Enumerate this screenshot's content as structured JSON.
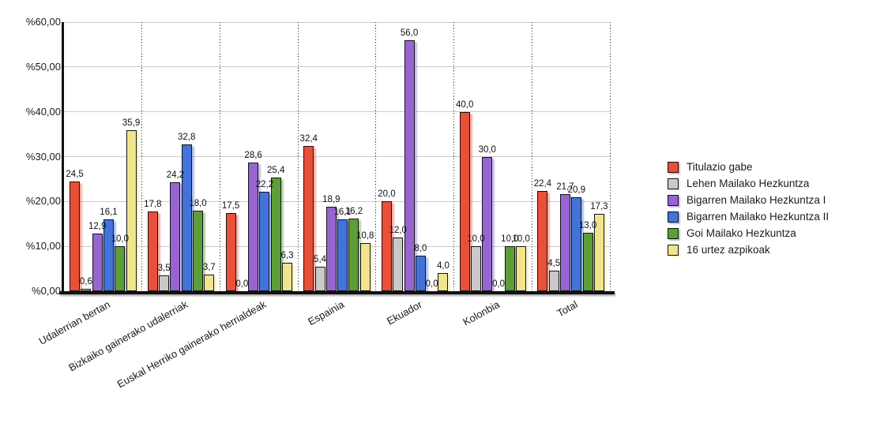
{
  "chart_data": {
    "type": "bar",
    "title": "",
    "xlabel": "",
    "ylabel": "",
    "ylim": [
      0,
      60
    ],
    "grid": true,
    "legend_position": "right",
    "decimal_separator": ",",
    "categories": [
      "Udalerrian bertan",
      "Bizkaiko gainerako udalerriak",
      "Euskal Herriko gainerako herrialdeak",
      "Espainia",
      "Ekuador",
      "Kolonbia",
      "Total"
    ],
    "y_ticks": [
      {
        "label": "%0,00",
        "value": 0
      },
      {
        "label": "%10,00",
        "value": 10
      },
      {
        "label": "%20,00",
        "value": 20
      },
      {
        "label": "%30,00",
        "value": 30
      },
      {
        "label": "%40,00",
        "value": 40
      },
      {
        "label": "%50,00",
        "value": 50
      },
      {
        "label": "%60,00",
        "value": 60
      }
    ],
    "series": [
      {
        "name": "Titulazio gabe",
        "color": "#E8503A",
        "values": [
          24.5,
          17.8,
          17.5,
          32.4,
          20.0,
          40.0,
          22.4
        ],
        "labels": [
          "24,5",
          "17,8",
          "17,5",
          "32,4",
          "20,0",
          "40,0",
          "22,4"
        ]
      },
      {
        "name": "Lehen Mailako Hezkuntza",
        "color": "#C9C9C9",
        "values": [
          0.6,
          3.5,
          0.0,
          5.4,
          12.0,
          10.0,
          4.5
        ],
        "labels": [
          "0,6",
          "3,5",
          "0,0",
          "5,4",
          "12,0",
          "10,0",
          "4,5"
        ]
      },
      {
        "name": "Bigarren Mailako Hezkuntza I",
        "color": "#9765D2",
        "values": [
          12.9,
          24.2,
          28.6,
          18.9,
          56.0,
          30.0,
          21.7
        ],
        "labels": [
          "12,9",
          "24,2",
          "28,6",
          "18,9",
          "56,0",
          "30,0",
          "21,7"
        ]
      },
      {
        "name": "Bigarren Mailako Hezkuntza II",
        "color": "#4273DB",
        "values": [
          16.1,
          32.8,
          22.2,
          16.1,
          8.0,
          0.0,
          20.9
        ],
        "labels": [
          "16,1",
          "32,8",
          "22,2",
          "16,1",
          "8,0",
          "0,0",
          "20,9"
        ]
      },
      {
        "name": "Goi Mailako Hezkuntza",
        "color": "#5C9E38",
        "values": [
          10.0,
          18.0,
          25.4,
          16.2,
          0.0,
          10.0,
          13.0
        ],
        "labels": [
          "10,0",
          "18,0",
          "25,4",
          "16,2",
          "0,0",
          "10,0",
          "13,0"
        ]
      },
      {
        "name": "16 urtez azpikoak",
        "color": "#F0E48C",
        "values": [
          35.9,
          3.7,
          6.3,
          10.8,
          4.0,
          10.0,
          17.3
        ],
        "labels": [
          "35,9",
          "3,7",
          "6,3",
          "10,8",
          "4,0",
          "10,0",
          "17,3"
        ]
      }
    ]
  }
}
